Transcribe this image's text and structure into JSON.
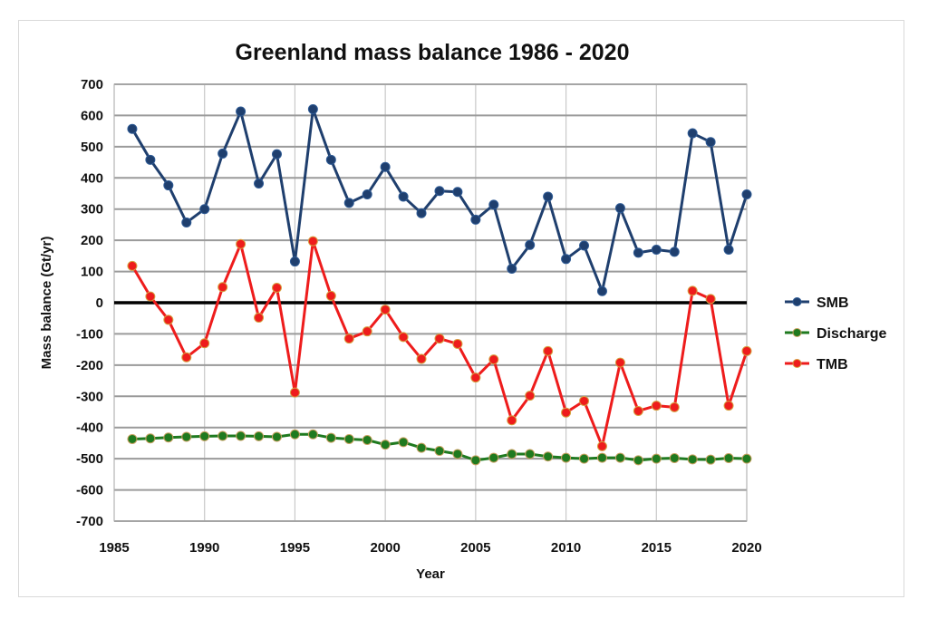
{
  "chart_data": {
    "type": "line",
    "title": "Greenland mass balance 1986 - 2020",
    "xlabel": "Year",
    "ylabel": "Mass balance (Gt/yr)",
    "xlim": [
      1985,
      2020
    ],
    "ylim": [
      -700,
      700
    ],
    "xticks": [
      1985,
      1990,
      1995,
      2000,
      2005,
      2010,
      2015,
      2020
    ],
    "yticks": [
      700,
      600,
      500,
      400,
      300,
      200,
      100,
      0,
      -100,
      -200,
      -300,
      -400,
      -500,
      -600,
      -700
    ],
    "grid": "both",
    "zero_line": true,
    "legend_position": "right",
    "x": [
      1986,
      1987,
      1988,
      1989,
      1990,
      1991,
      1992,
      1993,
      1994,
      1995,
      1996,
      1997,
      1998,
      1999,
      2000,
      2001,
      2002,
      2003,
      2004,
      2005,
      2006,
      2007,
      2008,
      2009,
      2010,
      2011,
      2012,
      2013,
      2014,
      2015,
      2016,
      2017,
      2018,
      2019,
      2020
    ],
    "series": [
      {
        "name": "SMB",
        "color": "#1f3f6e",
        "marker_edge": "#2e5a94",
        "values": [
          557,
          458,
          376,
          257,
          300,
          478,
          613,
          382,
          476,
          132,
          620,
          458,
          320,
          347,
          435,
          340,
          287,
          358,
          355,
          266,
          314,
          109,
          185,
          340,
          140,
          183,
          37,
          303,
          160,
          170,
          163,
          543,
          515,
          170,
          347
        ]
      },
      {
        "name": "Discharge",
        "color": "#1f7a1f",
        "marker_edge": "#c8a060",
        "values": [
          -437,
          -435,
          -432,
          -430,
          -428,
          -427,
          -427,
          -428,
          -430,
          -422,
          -422,
          -433,
          -437,
          -440,
          -455,
          -447,
          -465,
          -475,
          -485,
          -505,
          -497,
          -485,
          -485,
          -493,
          -497,
          -500,
          -497,
          -497,
          -505,
          -500,
          -498,
          -502,
          -503,
          -498,
          -500
        ]
      },
      {
        "name": "TMB",
        "color": "#ee1c1c",
        "marker_edge": "#d6a040",
        "values": [
          118,
          20,
          -55,
          -175,
          -130,
          50,
          188,
          -48,
          48,
          -288,
          197,
          22,
          -115,
          -92,
          -22,
          -110,
          -180,
          -115,
          -132,
          -240,
          -182,
          -377,
          -298,
          -155,
          -352,
          -315,
          -460,
          -192,
          -347,
          -330,
          -335,
          38,
          12,
          -330,
          -155
        ]
      }
    ]
  }
}
